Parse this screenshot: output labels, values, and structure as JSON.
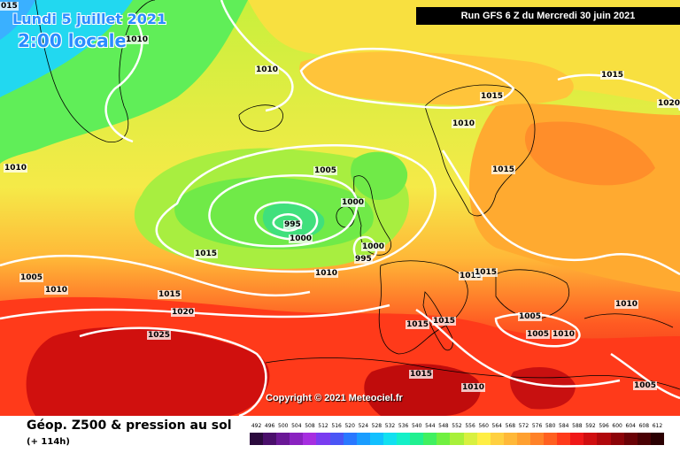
{
  "header": {
    "date": "Lundi 5 juillet 2021",
    "time": "2:00 locale",
    "run": "Run GFS 6 Z du Mercredi 30 juin 2021"
  },
  "copyright": "Copyright © 2021 Meteociel.fr",
  "footer": {
    "product": "Géop. Z500 & pression au sol",
    "lead": "(+ 114h)"
  },
  "isobar_labels": [
    "015",
    "1010",
    "1010",
    "1015",
    "1015",
    "1010",
    "1020",
    "1010",
    "1005",
    "1000",
    "995",
    "1000",
    "1000",
    "995",
    "1015",
    "1010",
    "1015",
    "1015",
    "1015",
    "1020",
    "1025",
    "1010",
    "1005",
    "1015",
    "1015",
    "1015",
    "1005",
    "1005",
    "1010",
    "1010",
    "1015",
    "1010",
    "1005"
  ],
  "legend": {
    "ticks": [
      "492",
      "496",
      "500",
      "504",
      "508",
      "512",
      "516",
      "520",
      "524",
      "528",
      "532",
      "536",
      "540",
      "544",
      "548",
      "552",
      "556",
      "560",
      "564",
      "568",
      "572",
      "576",
      "580",
      "584",
      "588",
      "592",
      "596",
      "600",
      "604",
      "608",
      "612"
    ],
    "colors": [
      "#2b0a3d",
      "#4a0f6b",
      "#6a1896",
      "#8a22c0",
      "#a62ee0",
      "#7a3cf0",
      "#4a55f5",
      "#2a78ff",
      "#1a9dff",
      "#12c0ff",
      "#12e0f0",
      "#14f0c8",
      "#20f090",
      "#40f060",
      "#70f040",
      "#a8f03a",
      "#d8f040",
      "#ffee44",
      "#ffd040",
      "#ffb838",
      "#ffa030",
      "#ff8228",
      "#ff6020",
      "#ff3a1a",
      "#f01818",
      "#d00e10",
      "#b0080c",
      "#8c0408",
      "#6a0206",
      "#4a0104",
      "#2a0002"
    ]
  }
}
